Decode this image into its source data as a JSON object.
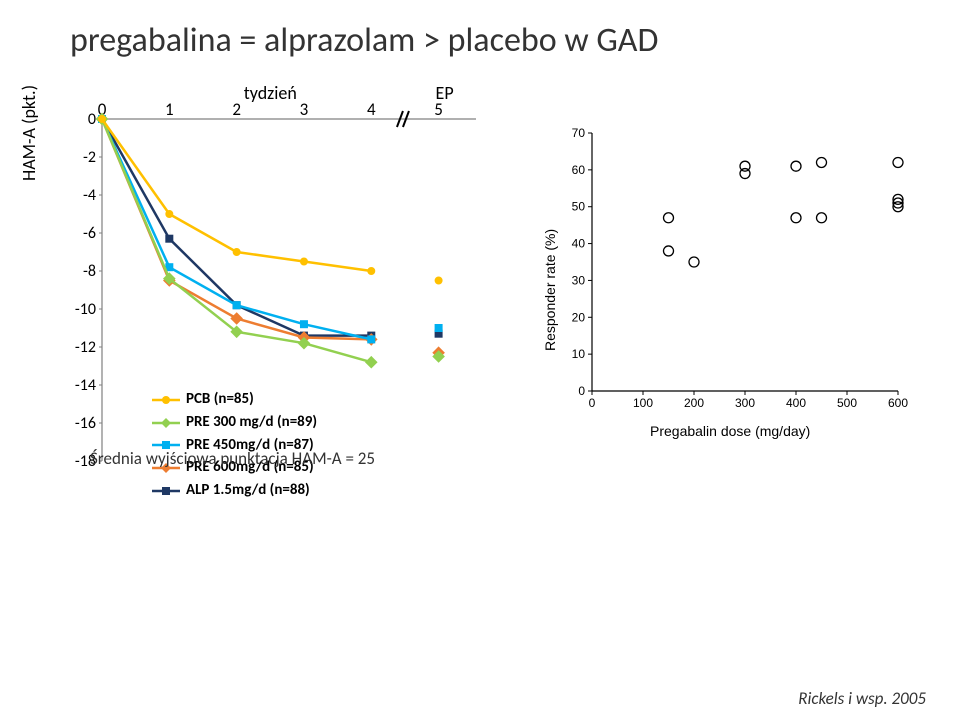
{
  "title": "pregabalina = alprazolam > placebo w GAD",
  "line_chart": {
    "type": "line",
    "x_label_top": "tydzień",
    "x_label_ep": "EP",
    "x_ticks": [
      "0",
      "1",
      "2",
      "3",
      "4",
      "5"
    ],
    "y_label": "HAM-A (pkt.)",
    "y_ticks": [
      "0",
      "-2",
      "-4",
      "-6",
      "-8",
      "-10",
      "-12",
      "-14",
      "-16",
      "-18"
    ],
    "y_lim": [
      -18,
      0
    ],
    "break_between": [
      4,
      5
    ],
    "series": {
      "pcb": {
        "label": "PCB (n=85)",
        "color": "#ffc000",
        "marker": "circle",
        "x": [
          0,
          1,
          2,
          3,
          4,
          5
        ],
        "y": [
          0,
          -5,
          -7,
          -7.5,
          -8,
          -8.5
        ]
      },
      "pre300": {
        "label": "PRE 300 mg/d (n=89)",
        "color": "#92d050",
        "marker": "diamond",
        "x": [
          0,
          1,
          2,
          3,
          4,
          5
        ],
        "y": [
          0,
          -8.4,
          -11.2,
          -11.8,
          -12.8,
          -12.5
        ]
      },
      "pre450": {
        "label": "PRE 450mg/d (n=87)",
        "color": "#00b0f0",
        "marker": "square",
        "x": [
          0,
          1,
          2,
          3,
          4,
          5
        ],
        "y": [
          0,
          -7.8,
          -9.8,
          -10.8,
          -11.6,
          -11.0
        ]
      },
      "pre600": {
        "label": "PRE 600mg/d (n=85)",
        "color": "#ed7d31",
        "marker": "diamond",
        "x": [
          0,
          1,
          2,
          3,
          4,
          5
        ],
        "y": [
          0,
          -8.5,
          -10.5,
          -11.5,
          -11.6,
          -12.3
        ]
      },
      "alp": {
        "label": "ALP 1.5mg/d (n=88)",
        "color": "#1f3864",
        "marker": "square",
        "x": [
          0,
          1,
          2,
          3,
          4,
          5
        ],
        "y": [
          0,
          -6.3,
          -9.8,
          -11.4,
          -11.4,
          -11.3
        ]
      }
    },
    "legend_order": [
      "pcb",
      "pre300",
      "pre450",
      "pre600",
      "alp"
    ],
    "axis_color": "#808080",
    "line_width": 2.5,
    "marker_size": 8
  },
  "baseline_note": "Średnia wyjściowa punktacja HAM-A = 25",
  "scatter_chart": {
    "type": "scatter",
    "x_label": "Pregabalin dose (mg/day)",
    "y_label": "Responder rate (%)",
    "x_ticks": [
      "0",
      "100",
      "200",
      "300",
      "400",
      "500",
      "600"
    ],
    "y_ticks": [
      "0",
      "10",
      "20",
      "30",
      "40",
      "50",
      "60",
      "70"
    ],
    "x_lim": [
      0,
      600
    ],
    "y_lim": [
      0,
      70
    ],
    "points": [
      {
        "x": 150,
        "y": 38
      },
      {
        "x": 150,
        "y": 47
      },
      {
        "x": 200,
        "y": 35
      },
      {
        "x": 300,
        "y": 59
      },
      {
        "x": 300,
        "y": 61
      },
      {
        "x": 400,
        "y": 47
      },
      {
        "x": 400,
        "y": 61
      },
      {
        "x": 450,
        "y": 47
      },
      {
        "x": 450,
        "y": 62
      },
      {
        "x": 600,
        "y": 50
      },
      {
        "x": 600,
        "y": 51
      },
      {
        "x": 600,
        "y": 52
      },
      {
        "x": 600,
        "y": 62
      }
    ],
    "marker_color": "#000000",
    "marker_style": "open-circle",
    "marker_size": 5,
    "axis_color": "#000000"
  },
  "citation": "Rickels  i wsp. 2005"
}
